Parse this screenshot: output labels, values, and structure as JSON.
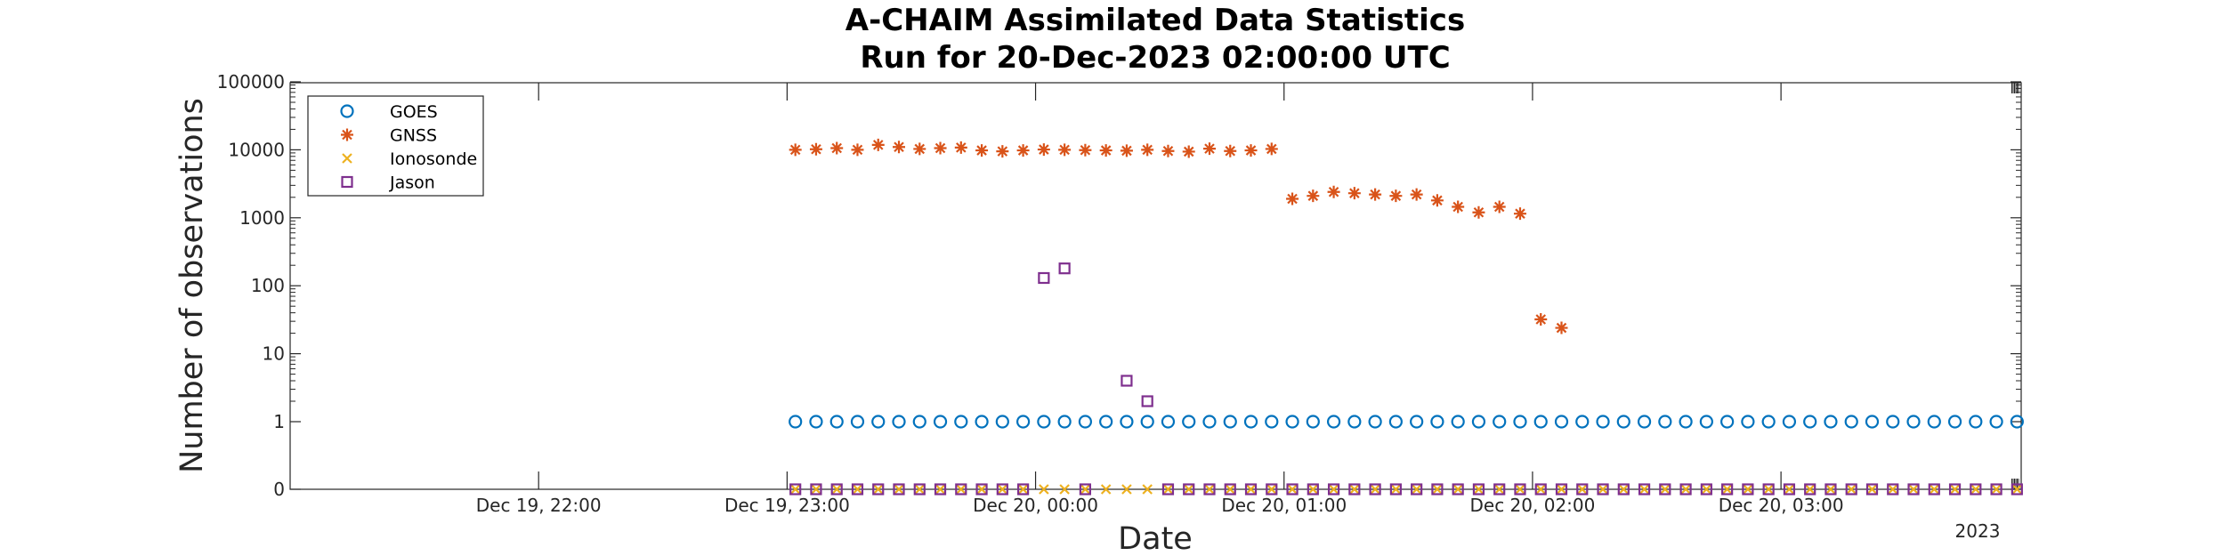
{
  "chart_data": {
    "type": "scatter",
    "title_lines": [
      "A-CHAIM Assimilated Data Statistics",
      "Run for 20-Dec-2023 02:00:00 UTC"
    ],
    "xlabel": "Date",
    "ylabel": "Number of observations",
    "y_scale": "log",
    "y_display_zero_at_bottom": true,
    "ylim": [
      0,
      100000
    ],
    "y_ticks": [
      0,
      1,
      10,
      100,
      1000,
      10000,
      100000
    ],
    "y_tick_labels": [
      "0",
      "1",
      "10",
      "100",
      "1000",
      "10000",
      "100000"
    ],
    "xlim": [
      "2023-12-19 21:00",
      "2023-12-20 03:58"
    ],
    "x_ticks": [
      "2023-12-19 22:00",
      "2023-12-19 23:00",
      "2023-12-20 00:00",
      "2023-12-20 01:00",
      "2023-12-20 02:00",
      "2023-12-20 03:00"
    ],
    "x_tick_labels": [
      "Dec 19, 22:00",
      "Dec 19, 23:00",
      "Dec 20, 00:00",
      "Dec 20, 01:00",
      "Dec 20, 02:00",
      "Dec 20, 03:00"
    ],
    "x_year_label": "2023",
    "grid": false,
    "legend_position": "top-left",
    "x_sample_times": [
      "23:02",
      "23:07",
      "23:12",
      "23:17",
      "23:22",
      "23:27",
      "23:32",
      "23:37",
      "23:42",
      "23:47",
      "23:52",
      "23:57",
      "00:02",
      "00:07",
      "00:12",
      "00:17",
      "00:22",
      "00:27",
      "00:32",
      "00:37",
      "00:42",
      "00:47",
      "00:52",
      "00:57",
      "01:02",
      "01:07",
      "01:12",
      "01:17",
      "01:22",
      "01:27",
      "01:32",
      "01:37",
      "01:42",
      "01:47",
      "01:52",
      "01:57",
      "02:02",
      "02:07",
      "02:12",
      "02:17",
      "02:22",
      "02:27",
      "02:32",
      "02:37",
      "02:42",
      "02:47",
      "02:52",
      "02:57",
      "03:02",
      "03:07",
      "03:12",
      "03:17",
      "03:22",
      "03:27",
      "03:32",
      "03:37",
      "03:42",
      "03:47",
      "03:52",
      "03:57"
    ],
    "series": [
      {
        "name": "GOES",
        "marker": "circle",
        "color": "#0072BD",
        "values": [
          1,
          1,
          1,
          1,
          1,
          1,
          1,
          1,
          1,
          1,
          1,
          1,
          1,
          1,
          1,
          1,
          1,
          1,
          1,
          1,
          1,
          1,
          1,
          1,
          1,
          1,
          1,
          1,
          1,
          1,
          1,
          1,
          1,
          1,
          1,
          1,
          1,
          1,
          1,
          1,
          1,
          1,
          1,
          1,
          1,
          1,
          1,
          1,
          1,
          1,
          1,
          1,
          1,
          1,
          1,
          1,
          1,
          1,
          1,
          1
        ]
      },
      {
        "name": "GNSS",
        "marker": "asterisk",
        "color": "#D95319",
        "values": [
          10000,
          10200,
          10600,
          10000,
          11800,
          11000,
          10300,
          10600,
          10800,
          9800,
          9500,
          9800,
          10100,
          10000,
          9900,
          9800,
          9700,
          10000,
          9600,
          9400,
          10400,
          9600,
          9800,
          10300,
          1900,
          2100,
          2400,
          2300,
          2200,
          2100,
          2200,
          1800,
          1450,
          1200,
          1450,
          1150,
          32,
          24,
          null,
          null,
          null,
          null,
          null,
          null,
          null,
          null,
          null,
          null,
          null,
          null,
          null,
          null,
          null,
          null,
          null,
          null,
          null,
          null,
          null,
          null
        ]
      },
      {
        "name": "Ionosonde",
        "marker": "x",
        "color": "#EDB120",
        "values": [
          0,
          0,
          0,
          0,
          0,
          0,
          0,
          0,
          0,
          0,
          0,
          0,
          0,
          0,
          0,
          0,
          0,
          0,
          0,
          0,
          0,
          0,
          0,
          0,
          0,
          0,
          0,
          0,
          0,
          0,
          0,
          0,
          0,
          0,
          0,
          0,
          0,
          0,
          0,
          0,
          0,
          0,
          0,
          0,
          0,
          0,
          0,
          0,
          0,
          0,
          0,
          0,
          0,
          0,
          0,
          0,
          0,
          0,
          0,
          0
        ]
      },
      {
        "name": "Jason",
        "marker": "square",
        "color": "#7E2F8E",
        "values": [
          0,
          0,
          0,
          0,
          0,
          0,
          0,
          0,
          0,
          0,
          0,
          0,
          130,
          180,
          0,
          0,
          4,
          2,
          0,
          0,
          0,
          0,
          0,
          0,
          0,
          0,
          0,
          0,
          0,
          0,
          0,
          0,
          0,
          0,
          0,
          0,
          0,
          0,
          0,
          0,
          0,
          0,
          0,
          0,
          0,
          0,
          0,
          0,
          0,
          0,
          0,
          0,
          0,
          0,
          0,
          0,
          0,
          0,
          0,
          0
        ],
        "hidden_at_zero_indices": [
          12,
          13,
          15,
          17
        ]
      }
    ]
  }
}
